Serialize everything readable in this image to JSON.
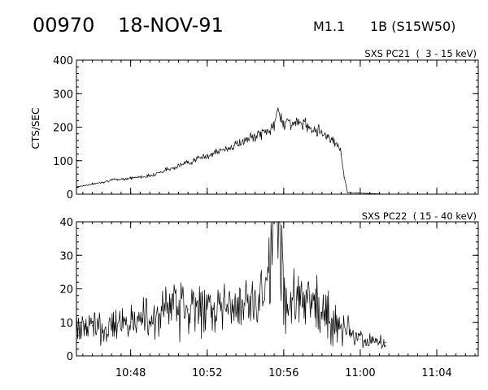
{
  "header": {
    "event_id": "00970",
    "date": "18-NOV-91",
    "flare_class": "M1.1",
    "optical_class": "1B (S15W50)"
  },
  "colors": {
    "background": "#ffffff",
    "ink": "#000000"
  },
  "chart_data": [
    {
      "type": "line",
      "title": "SXS PC21  (  3 - 15 keV)",
      "ylabel": "CTS/SEC",
      "xlabel": "",
      "grid": false,
      "xlim": [
        "10:45:10",
        "11:06:10"
      ],
      "ylim": [
        0,
        400
      ],
      "yticks": [
        0,
        100,
        200,
        300,
        400
      ],
      "xticks": [
        "10:48",
        "10:52",
        "10:56",
        "11:00",
        "11:04"
      ],
      "x_tick_labels_shown": false,
      "series": [
        {
          "points": [
            [
              "10:45:10",
              22
            ],
            [
              "10:46:00",
              30
            ],
            [
              "10:47:00",
              42
            ],
            [
              "10:48:00",
              48
            ],
            [
              "10:49:00",
              55
            ],
            [
              "10:50:00",
              75
            ],
            [
              "10:51:00",
              95
            ],
            [
              "10:52:00",
              115
            ],
            [
              "10:53:00",
              135
            ],
            [
              "10:54:00",
              160
            ],
            [
              "10:55:00",
              185
            ],
            [
              "10:55:30",
              200
            ],
            [
              "10:55:40",
              250
            ],
            [
              "10:56:00",
              215
            ],
            [
              "10:57:00",
              210
            ],
            [
              "10:58:00",
              185
            ],
            [
              "10:58:50",
              150
            ],
            [
              "10:59:00",
              120
            ],
            [
              "10:59:10",
              50
            ],
            [
              "10:59:20",
              5
            ],
            [
              "11:01:20",
              0
            ]
          ]
        }
      ]
    },
    {
      "type": "line",
      "title": "SXS PC22  ( 15 - 40 keV)",
      "ylabel": "",
      "xlabel": "",
      "grid": false,
      "xlim": [
        "10:45:10",
        "11:06:10"
      ],
      "ylim": [
        0,
        40
      ],
      "yticks": [
        0,
        10,
        20,
        30,
        40
      ],
      "xticks": [
        "10:48",
        "10:52",
        "10:56",
        "11:00",
        "11:04"
      ],
      "x_tick_labels_shown": true,
      "series": [
        {
          "points": [
            [
              "10:45:10",
              9
            ],
            [
              "10:46:00",
              9
            ],
            [
              "10:47:00",
              9
            ],
            [
              "10:48:00",
              10
            ],
            [
              "10:49:00",
              11
            ],
            [
              "10:50:00",
              14
            ],
            [
              "10:51:00",
              14
            ],
            [
              "10:52:00",
              14
            ],
            [
              "10:53:00",
              14
            ],
            [
              "10:54:00",
              15
            ],
            [
              "10:55:00",
              17
            ],
            [
              "10:55:30",
              40
            ],
            [
              "10:55:45",
              40
            ],
            [
              "10:56:00",
              18
            ],
            [
              "10:57:00",
              15
            ],
            [
              "10:58:00",
              13
            ],
            [
              "10:59:00",
              9
            ],
            [
              "11:00:00",
              5
            ],
            [
              "11:01:00",
              4
            ],
            [
              "11:01:20",
              4
            ]
          ]
        }
      ]
    }
  ]
}
